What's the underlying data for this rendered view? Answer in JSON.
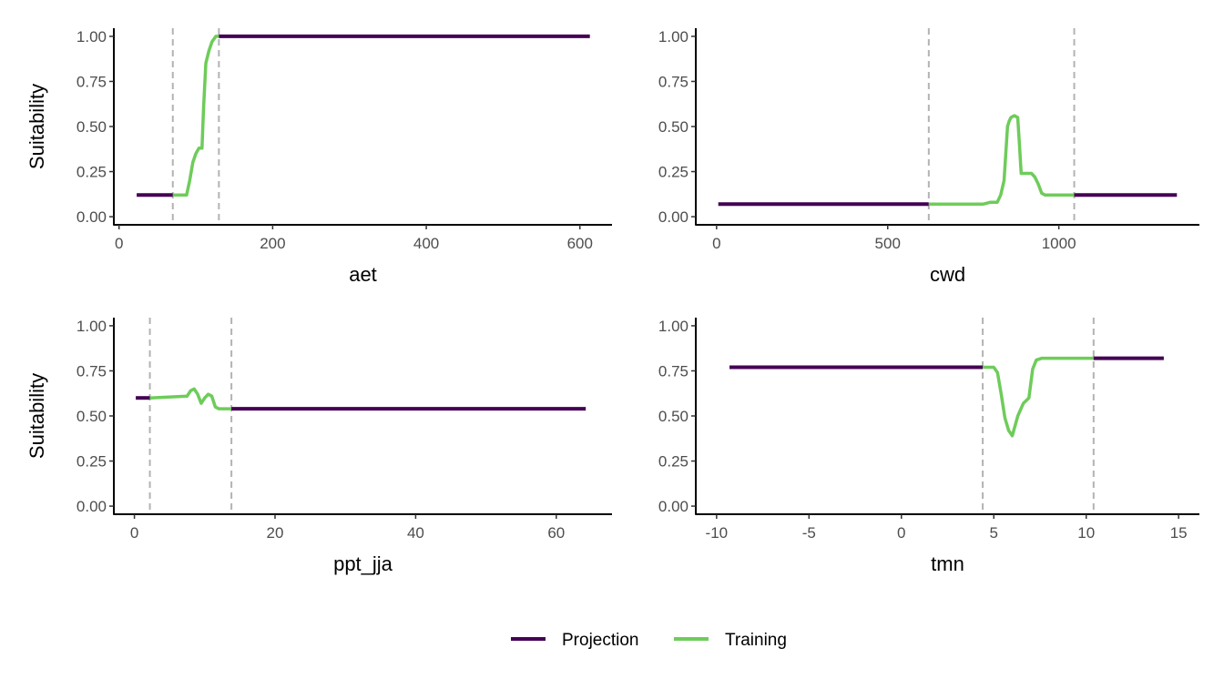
{
  "colors": {
    "projection": "#440154",
    "training": "#6ECC5A",
    "threshold": "#b3b3b3",
    "axis": "#000000"
  },
  "legend": {
    "position": "bottom",
    "items": [
      {
        "key": "projection",
        "label": "Projection"
      },
      {
        "key": "training",
        "label": "Training"
      }
    ]
  },
  "chart_data": [
    {
      "type": "line",
      "xlabel": "aet",
      "ylabel": "Suitability",
      "xlim": [
        20,
        615
      ],
      "ylim": [
        0,
        1
      ],
      "xticks": [
        0,
        200,
        400,
        600
      ],
      "xtick_labels": [
        "0",
        "200",
        "400",
        "600"
      ],
      "yticks": [
        0,
        0.25,
        0.5,
        0.75,
        1
      ],
      "ytick_labels": [
        "0.00",
        "0.25",
        "0.50",
        "0.75",
        "1.00"
      ],
      "thresholds": [
        70,
        130
      ],
      "series": [
        {
          "name": "Projection",
          "key": "projection",
          "x": [
            23,
            70
          ],
          "y": [
            0.12,
            0.12
          ]
        },
        {
          "name": "Training",
          "key": "training",
          "x": [
            70,
            88,
            92,
            96,
            100,
            104,
            108,
            110,
            113,
            117,
            121,
            126,
            130
          ],
          "y": [
            0.12,
            0.12,
            0.2,
            0.3,
            0.35,
            0.38,
            0.38,
            0.6,
            0.85,
            0.92,
            0.97,
            1.0,
            1.0
          ]
        },
        {
          "name": "Projection",
          "key": "projection",
          "x": [
            130,
            613
          ],
          "y": [
            1.0,
            1.0
          ]
        }
      ]
    },
    {
      "type": "line",
      "xlabel": "cwd",
      "ylabel": "",
      "xlim": [
        0,
        1350
      ],
      "ylim": [
        0,
        1
      ],
      "xticks": [
        0,
        500,
        1000
      ],
      "xtick_labels": [
        "0",
        "500",
        "1000"
      ],
      "yticks": [
        0,
        0.25,
        0.5,
        0.75,
        1
      ],
      "ytick_labels": [
        "0.00",
        "0.25",
        "0.50",
        "0.75",
        "1.00"
      ],
      "thresholds": [
        620,
        1045
      ],
      "series": [
        {
          "name": "Projection",
          "key": "projection",
          "x": [
            5,
            620
          ],
          "y": [
            0.07,
            0.07
          ]
        },
        {
          "name": "Training",
          "key": "training",
          "x": [
            620,
            780,
            800,
            820,
            830,
            840,
            850,
            855,
            860,
            870,
            880,
            885,
            890,
            900,
            910,
            920,
            930,
            940,
            950,
            960,
            1045
          ],
          "y": [
            0.07,
            0.07,
            0.08,
            0.08,
            0.12,
            0.2,
            0.5,
            0.53,
            0.55,
            0.56,
            0.55,
            0.4,
            0.24,
            0.24,
            0.24,
            0.24,
            0.22,
            0.18,
            0.13,
            0.12,
            0.12
          ]
        },
        {
          "name": "Projection",
          "key": "projection",
          "x": [
            1045,
            1345
          ],
          "y": [
            0.12,
            0.12
          ]
        }
      ]
    },
    {
      "type": "line",
      "xlabel": "ppt_jja",
      "ylabel": "Suitability",
      "xlim": [
        0,
        65
      ],
      "ylim": [
        0,
        1
      ],
      "xticks": [
        0,
        20,
        40,
        60
      ],
      "xtick_labels": [
        "0",
        "20",
        "40",
        "60"
      ],
      "yticks": [
        0,
        0.25,
        0.5,
        0.75,
        1
      ],
      "ytick_labels": [
        "0.00",
        "0.25",
        "0.50",
        "0.75",
        "1.00"
      ],
      "thresholds": [
        2.2,
        13.8
      ],
      "series": [
        {
          "name": "Projection",
          "key": "projection",
          "x": [
            0.2,
            2.2
          ],
          "y": [
            0.6,
            0.6
          ]
        },
        {
          "name": "Training",
          "key": "training",
          "x": [
            2.2,
            7.5,
            8.0,
            8.5,
            9.0,
            9.5,
            10.0,
            10.5,
            11.0,
            11.5,
            12.0,
            13.8
          ],
          "y": [
            0.6,
            0.61,
            0.64,
            0.65,
            0.62,
            0.57,
            0.6,
            0.62,
            0.61,
            0.55,
            0.54,
            0.54
          ]
        },
        {
          "name": "Projection",
          "key": "projection",
          "x": [
            13.8,
            64.2
          ],
          "y": [
            0.54,
            0.54
          ]
        }
      ]
    },
    {
      "type": "line",
      "xlabel": "tmn",
      "ylabel": "",
      "xlim": [
        -10,
        15
      ],
      "ylim": [
        0,
        1
      ],
      "xticks": [
        -10,
        -5,
        0,
        5,
        10,
        15
      ],
      "xtick_labels": [
        "-10",
        "-5",
        "0",
        "5",
        "10",
        "15"
      ],
      "yticks": [
        0,
        0.25,
        0.5,
        0.75,
        1
      ],
      "ytick_labels": [
        "0.00",
        "0.25",
        "0.50",
        "0.75",
        "1.00"
      ],
      "thresholds": [
        4.4,
        10.4
      ],
      "series": [
        {
          "name": "Projection",
          "key": "projection",
          "x": [
            -9.3,
            4.4
          ],
          "y": [
            0.77,
            0.77
          ]
        },
        {
          "name": "Training",
          "key": "training",
          "x": [
            4.4,
            5.0,
            5.2,
            5.4,
            5.6,
            5.8,
            6.0,
            6.3,
            6.6,
            6.9,
            7.1,
            7.3,
            7.6,
            10.4
          ],
          "y": [
            0.77,
            0.77,
            0.74,
            0.62,
            0.49,
            0.42,
            0.39,
            0.5,
            0.57,
            0.6,
            0.76,
            0.81,
            0.82,
            0.82
          ]
        },
        {
          "name": "Projection",
          "key": "projection",
          "x": [
            10.4,
            14.2
          ],
          "y": [
            0.82,
            0.82
          ]
        }
      ]
    }
  ]
}
